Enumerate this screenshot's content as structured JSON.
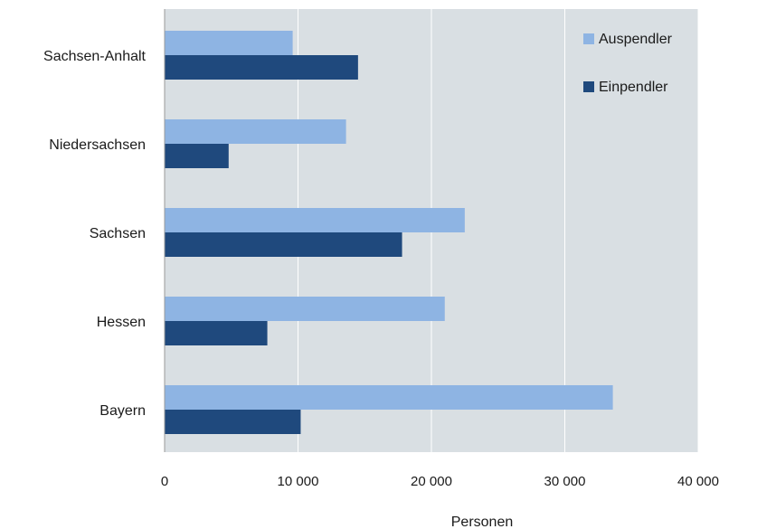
{
  "chart_data": {
    "type": "bar",
    "orientation": "horizontal",
    "categories": [
      "Sachsen-Anhalt",
      "Niedersachsen",
      "Sachsen",
      "Hessen",
      "Bayern"
    ],
    "series": [
      {
        "name": "Auspendler",
        "color": "#8eb4e3",
        "values": [
          9600,
          13600,
          22500,
          21000,
          33600
        ]
      },
      {
        "name": "Einpendler",
        "color": "#1f497d",
        "values": [
          14500,
          4800,
          17800,
          7700,
          10200
        ]
      }
    ],
    "xlabel": "Personen",
    "ylabel": "",
    "xlim": [
      0,
      40000
    ],
    "xticks": [
      {
        "value": 0,
        "label": "0"
      },
      {
        "value": 10000,
        "label": "10 000"
      },
      {
        "value": 20000,
        "label": "20 000"
      },
      {
        "value": 30000,
        "label": "30 000"
      },
      {
        "value": 40000,
        "label": "40 000"
      }
    ],
    "grid": true,
    "legend_position": "top-right",
    "plot_background": "#d9dfe3"
  }
}
